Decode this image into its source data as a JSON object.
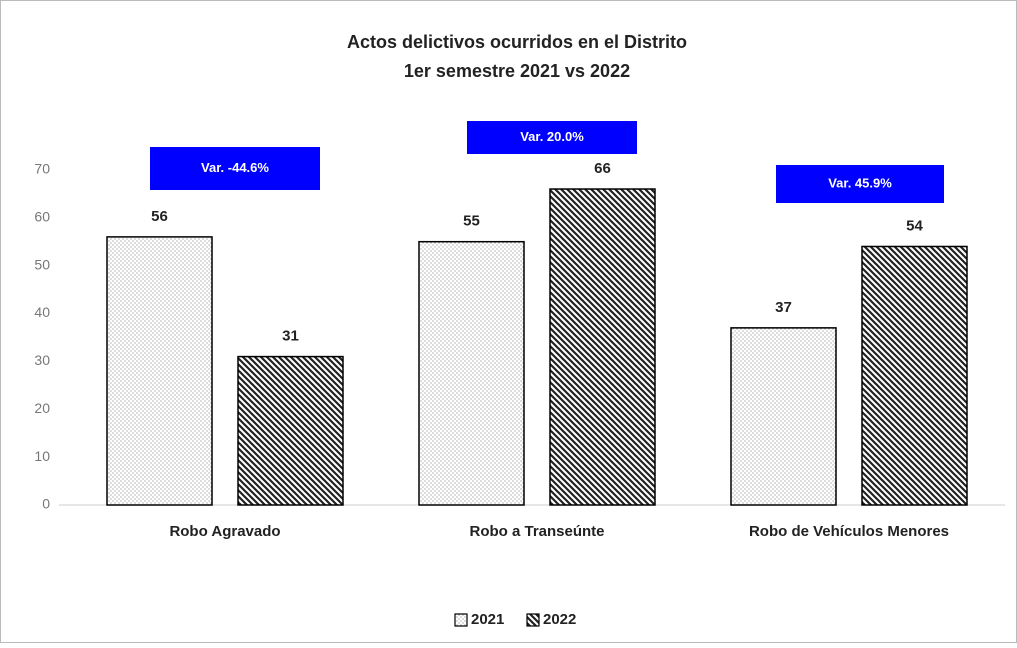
{
  "chart_data": {
    "type": "bar",
    "title": [
      "Actos delictivos ocurridos  en el Distrito",
      "1er semestre 2021 vs 2022"
    ],
    "categories": [
      "Robo Agravado",
      "Robo a Transeúnte",
      "Robo de Vehículos Menores"
    ],
    "series": [
      {
        "name": "2021",
        "color": "#888888",
        "values": [
          56,
          55,
          37
        ]
      },
      {
        "name": "2022",
        "color": "#222222",
        "values": [
          31,
          66,
          54
        ]
      }
    ],
    "annotations": [
      "Var. -44.6%",
      "Var. 20.0%",
      "Var. 45.9%"
    ],
    "annotation_color": "#0000ff",
    "ylim": [
      0,
      80
    ],
    "yticks": [
      0,
      10,
      20,
      30,
      40,
      50,
      60,
      70
    ],
    "grid": false,
    "legend": "bottom"
  }
}
